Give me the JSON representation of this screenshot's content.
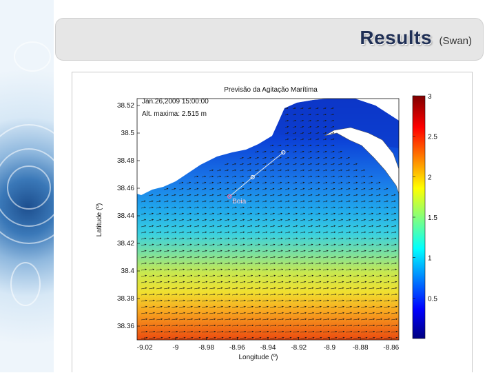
{
  "slide": {
    "title": "Results",
    "subtitle": "(Swan)"
  },
  "colors": {
    "title_text": "#1f2f55",
    "land": "#ffffff",
    "low_wave": "#1030c8",
    "high_wave": "#e83010"
  },
  "chart_data": {
    "type": "heatmap",
    "title": "Previsão da Agitação Marítima",
    "annotations": {
      "datetime": "Jan.26,2009 15:00:00",
      "max_height": "Alt. maxima: 2.515 m",
      "point_label": "Boia"
    },
    "xlabel": "Longitude (º)",
    "ylabel": "Latitude (º)",
    "xlim": [
      -9.025,
      -8.855
    ],
    "ylim": [
      38.35,
      38.525
    ],
    "xticks": [
      "-9.02",
      "-9",
      "-8.98",
      "-8.96",
      "-8.94",
      "-8.92",
      "-8.9",
      "-8.88",
      "-8.86"
    ],
    "yticks": [
      "38.52",
      "38.5",
      "38.48",
      "38.46",
      "38.44",
      "38.42",
      "38.4",
      "38.38",
      "38.36"
    ],
    "colorbar": {
      "min": 0,
      "max": 3,
      "ticks": [
        "3",
        "2.5",
        "2",
        "1.5",
        "1",
        "0.5"
      ],
      "colormap": "jet"
    },
    "wave_height_by_latitude": [
      {
        "lat": 38.355,
        "height": 2.5
      },
      {
        "lat": 38.37,
        "height": 2.1
      },
      {
        "lat": 38.385,
        "height": 1.8
      },
      {
        "lat": 38.4,
        "height": 1.6
      },
      {
        "lat": 38.415,
        "height": 1.4
      },
      {
        "lat": 38.43,
        "height": 1.2
      },
      {
        "lat": 38.445,
        "height": 0.95
      },
      {
        "lat": 38.46,
        "height": 0.75
      },
      {
        "lat": 38.475,
        "height": 0.55
      },
      {
        "lat": 38.49,
        "height": 0.35
      },
      {
        "lat": 38.5,
        "height": 0.2
      }
    ],
    "buoy_line": [
      {
        "lon": -8.965,
        "lat": 38.454
      },
      {
        "lon": -8.95,
        "lat": 38.468
      },
      {
        "lon": -8.93,
        "lat": 38.486
      }
    ],
    "buoy_point": {
      "lon": -8.965,
      "lat": 38.454
    }
  }
}
